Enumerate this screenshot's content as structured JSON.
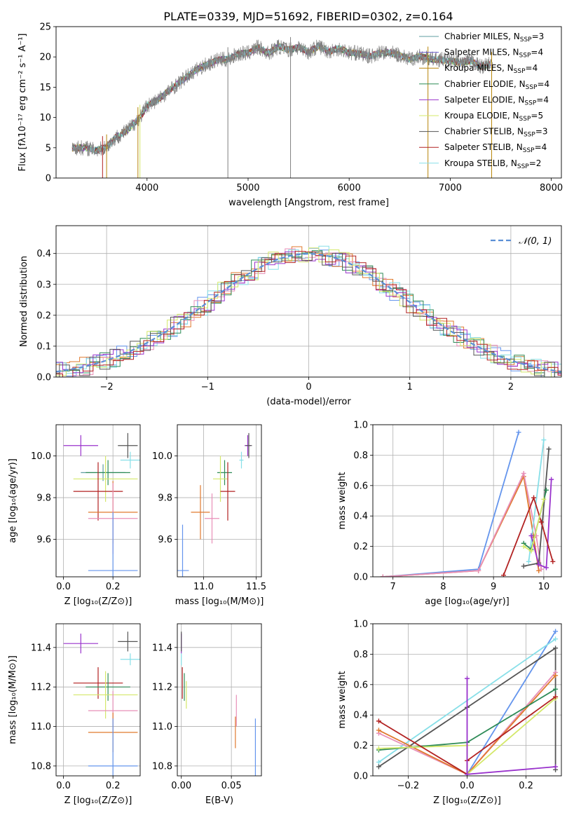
{
  "figure_title": "PLATE=0339, MJD=51692, FIBERID=0302, z=0.164",
  "colors": {
    "chabrier_miles": "#5f9ea0",
    "salpeter_miles": "#6a5acd",
    "kroupa_miles": "#b8860b",
    "chabrier_elodie": "#2e8b57",
    "salpeter_elodie": "#9932cc",
    "kroupa_elodie": "#d4e86a",
    "chabrier_stelib": "#555555",
    "salpeter_stelib": "#b22222",
    "kroupa_stelib": "#87dfe8",
    "hist_blue": "#6495ed",
    "hist_orange": "#e07a2e",
    "hist_pink": "#e88fb8",
    "gauss": "#5b8fd6"
  },
  "chart_data": [
    {
      "id": "spectrum",
      "type": "line",
      "title": "PLATE=0339, MJD=51692, FIBERID=0302, z=0.164",
      "xlabel": "wavelength [Angstrom, rest frame]",
      "ylabel": "Flux [fλ10⁻¹⁷ erg cm⁻² s⁻¹ A⁻¹]",
      "xlim": [
        3100,
        8100
      ],
      "ylim": [
        0,
        25
      ],
      "xticks": [
        "4000",
        "5000",
        "6000",
        "7000",
        "8000"
      ],
      "yticks": [
        "0",
        "5",
        "10",
        "15",
        "20",
        "25"
      ],
      "legend_position": "right",
      "legend": [
        "Chabrier MILES, N_SSP=3",
        "Salpeter MILES, N_SSP=4",
        "Kroupa MILES, N_SSP=4",
        "Chabrier ELODIE, N_SSP=4",
        "Salpeter ELODIE, N_SSP=4",
        "Kroupa ELODIE, N_SSP=5",
        "Chabrier STELIB, N_SSP=3",
        "Salpeter STELIB, N_SSP=4",
        "Kroupa STELIB, N_SSP=2"
      ],
      "x": [
        3260,
        3400,
        3500,
        3600,
        3700,
        3800,
        3900,
        3950,
        4000,
        4100,
        4200,
        4300,
        4400,
        4500,
        4600,
        4700,
        4800,
        4900,
        5000,
        5100,
        5200,
        5300,
        5400,
        5500,
        5600,
        5700,
        5800,
        5900,
        6000,
        6100,
        6200,
        6300,
        6400,
        6500,
        6600,
        6700,
        6800,
        6900,
        7000,
        7100,
        7200,
        7300,
        7400
      ],
      "y": [
        5.0,
        5.0,
        4.5,
        5.2,
        6.8,
        7.8,
        9.5,
        10.5,
        12.0,
        12.8,
        14.2,
        15.5,
        16.8,
        18.0,
        18.8,
        19.5,
        19.6,
        20.5,
        20.6,
        21.6,
        20.6,
        21.7,
        21.2,
        21.6,
        20.8,
        21.8,
        20.9,
        21.4,
        20.7,
        20.6,
        20.1,
        20.6,
        20.7,
        20.3,
        19.6,
        20.1,
        19.6,
        19.6,
        19.3,
        19.0,
        19.4,
        18.4,
        18.8
      ]
    },
    {
      "id": "residual_histogram",
      "type": "line",
      "xlabel": "(data-model)/error",
      "ylabel": "Normed distribution",
      "xlim": [
        -2.5,
        2.5
      ],
      "ylim": [
        0,
        0.49
      ],
      "xticks": [
        "−2",
        "−1",
        "0",
        "1",
        "2"
      ],
      "yticks": [
        "0.0",
        "0.1",
        "0.2",
        "0.3",
        "0.4"
      ],
      "legend": [
        "𝒩(0, 1)"
      ],
      "legend_position": "top-right",
      "gaussian": {
        "mean": 0,
        "sigma": 1
      }
    },
    {
      "id": "age_vs_Z",
      "type": "scatter",
      "xlabel": "Z [log₁₀(Z/Z⊙)]",
      "ylabel": "age  [log₁₀(age/yr)]",
      "xlim": [
        -0.03,
        0.31
      ],
      "ylim": [
        9.42,
        10.15
      ],
      "xticks": [
        "0.0",
        "0.2"
      ],
      "yticks": [
        "9.6",
        "9.8",
        "10.0"
      ],
      "points": [
        {
          "series": "Salpeter ELODIE",
          "color": "salpeter_elodie",
          "x": 0.07,
          "y": 10.05,
          "xerr": 0.07,
          "yerr": 0.05
        },
        {
          "series": "Chabrier STELIB",
          "color": "chabrier_stelib",
          "x": 0.26,
          "y": 10.05,
          "xerr": 0.04,
          "yerr": 0.06
        },
        {
          "series": "Kroupa STELIB",
          "color": "kroupa_stelib",
          "x": 0.27,
          "y": 9.98,
          "xerr": 0.04,
          "yerr": 0.04
        },
        {
          "series": "Chabrier MILES",
          "color": "chabrier_miles",
          "x": 0.16,
          "y": 9.92,
          "xerr": 0.09,
          "yerr": 0.04
        },
        {
          "series": "Chabrier ELODIE",
          "color": "chabrier_elodie",
          "x": 0.18,
          "y": 9.92,
          "xerr": 0.09,
          "yerr": 0.06
        },
        {
          "series": "Kroupa ELODIE",
          "color": "kroupa_elodie",
          "x": 0.17,
          "y": 9.89,
          "xerr": 0.13,
          "yerr": 0.11
        },
        {
          "series": "Salpeter STELIB",
          "color": "salpeter_stelib",
          "x": 0.14,
          "y": 9.83,
          "xerr": 0.1,
          "yerr": 0.14
        },
        {
          "series": "Kroupa MILES",
          "color": "hist_orange",
          "x": 0.2,
          "y": 9.73,
          "xerr": 0.1,
          "yerr": 0.15
        },
        {
          "series": "Salpeter MILES",
          "color": "hist_pink",
          "x": 0.2,
          "y": 9.7,
          "xerr": 0.1,
          "yerr": 0.17
        },
        {
          "series": "MILES blue",
          "color": "hist_blue",
          "x": 0.2,
          "y": 9.45,
          "xerr": 0.1,
          "yerr": 0.28
        }
      ]
    },
    {
      "id": "age_vs_mass",
      "type": "scatter",
      "xlabel": "mass [log₁₀(M/M⊙)]",
      "xlim": [
        10.75,
        11.55
      ],
      "ylim": [
        9.42,
        10.15
      ],
      "xticks": [
        "11.0",
        "11.5"
      ],
      "yticks": [
        "9.6",
        "9.8",
        "10.0"
      ],
      "points": [
        {
          "color": "salpeter_elodie",
          "x": 11.42,
          "y": 10.05,
          "xerr": 0.03,
          "yerr": 0.05
        },
        {
          "color": "chabrier_stelib",
          "x": 11.43,
          "y": 10.05,
          "xerr": 0.03,
          "yerr": 0.06
        },
        {
          "color": "kroupa_stelib",
          "x": 11.36,
          "y": 9.98,
          "xerr": 0.02,
          "yerr": 0.04
        },
        {
          "color": "chabrier_elodie",
          "x": 11.2,
          "y": 9.92,
          "xerr": 0.07,
          "yerr": 0.06
        },
        {
          "color": "kroupa_elodie",
          "x": 11.16,
          "y": 9.89,
          "xerr": 0.07,
          "yerr": 0.11
        },
        {
          "color": "salpeter_stelib",
          "x": 11.23,
          "y": 9.83,
          "xerr": 0.07,
          "yerr": 0.14
        },
        {
          "color": "hist_orange",
          "x": 10.97,
          "y": 9.73,
          "xerr": 0.09,
          "yerr": 0.13
        },
        {
          "color": "hist_pink",
          "x": 11.08,
          "y": 9.7,
          "xerr": 0.07,
          "yerr": 0.12
        },
        {
          "color": "hist_blue",
          "x": 10.8,
          "y": 9.45,
          "xerr": 0.06,
          "yerr": 0.22
        }
      ]
    },
    {
      "id": "weight_vs_age",
      "type": "line",
      "xlabel": "age  [log₁₀(age/yr)]",
      "ylabel": "mass weight",
      "xlim": [
        6.6,
        10.35
      ],
      "ylim": [
        0,
        1
      ],
      "xticks": [
        "7",
        "8",
        "9",
        "10"
      ],
      "yticks": [
        "0.0",
        "0.2",
        "0.4",
        "0.6",
        "0.8",
        "1.0"
      ],
      "series": [
        {
          "color": "hist_blue",
          "x": [
            6.8,
            8.7,
            9.5
          ],
          "y": [
            0.0,
            0.05,
            0.95
          ]
        },
        {
          "color": "hist_orange",
          "x": [
            6.8,
            8.7,
            9.6,
            9.8,
            9.9
          ],
          "y": [
            0.0,
            0.04,
            0.66,
            0.26,
            0.04
          ]
        },
        {
          "color": "hist_pink",
          "x": [
            6.8,
            8.7,
            9.6,
            9.85,
            9.95
          ],
          "y": [
            0.0,
            0.04,
            0.68,
            0.27,
            0.05
          ]
        },
        {
          "color": "kroupa_stelib",
          "x": [
            9.7,
            10.0
          ],
          "y": [
            0.1,
            0.9
          ]
        },
        {
          "color": "chabrier_stelib",
          "x": [
            9.6,
            9.9,
            10.1
          ],
          "y": [
            0.07,
            0.09,
            0.84
          ]
        },
        {
          "color": "salpeter_elodie",
          "x": [
            9.75,
            9.9,
            10.05,
            10.15
          ],
          "y": [
            0.27,
            0.08,
            0.06,
            0.64
          ]
        },
        {
          "color": "salpeter_stelib",
          "x": [
            9.2,
            9.8,
            9.95,
            10.18
          ],
          "y": [
            0.01,
            0.52,
            0.36,
            0.1
          ]
        },
        {
          "color": "chabrier_elodie",
          "x": [
            9.6,
            9.75,
            10.05
          ],
          "y": [
            0.22,
            0.18,
            0.57
          ]
        },
        {
          "color": "kroupa_elodie",
          "x": [
            9.6,
            9.75,
            10.0
          ],
          "y": [
            0.2,
            0.17,
            0.51
          ]
        }
      ]
    },
    {
      "id": "mass_vs_Z",
      "type": "scatter",
      "xlabel": "Z [log₁₀(Z/Z⊙)]",
      "ylabel": "mass [log₁₀(M/M⊙)]",
      "xlim": [
        -0.03,
        0.31
      ],
      "ylim": [
        10.75,
        11.52
      ],
      "xticks": [
        "0.0",
        "0.2"
      ],
      "yticks": [
        "10.8",
        "11.0",
        "11.2",
        "11.4"
      ],
      "points": [
        {
          "color": "salpeter_elodie",
          "x": 0.07,
          "y": 11.42,
          "xerr": 0.07,
          "yerr": 0.05
        },
        {
          "color": "chabrier_stelib",
          "x": 0.26,
          "y": 11.43,
          "xerr": 0.04,
          "yerr": 0.05
        },
        {
          "color": "kroupa_stelib",
          "x": 0.27,
          "y": 11.34,
          "xerr": 0.04,
          "yerr": 0.03
        },
        {
          "color": "salpeter_stelib",
          "x": 0.14,
          "y": 11.22,
          "xerr": 0.1,
          "yerr": 0.08
        },
        {
          "color": "chabrier_elodie",
          "x": 0.18,
          "y": 11.2,
          "xerr": 0.09,
          "yerr": 0.07
        },
        {
          "color": "kroupa_elodie",
          "x": 0.17,
          "y": 11.16,
          "xerr": 0.13,
          "yerr": 0.12
        },
        {
          "color": "hist_pink",
          "x": 0.2,
          "y": 11.08,
          "xerr": 0.1,
          "yerr": 0.1
        },
        {
          "color": "hist_orange",
          "x": 0.2,
          "y": 10.97,
          "xerr": 0.1,
          "yerr": 0.1
        },
        {
          "color": "hist_blue",
          "x": 0.2,
          "y": 10.8,
          "xerr": 0.1,
          "yerr": 0.24
        }
      ]
    },
    {
      "id": "mass_vs_ebv",
      "type": "scatter",
      "xlabel": "E(B-V)",
      "xlim": [
        -0.004,
        0.08
      ],
      "ylim": [
        10.75,
        11.52
      ],
      "xticks": [
        "0.00",
        "0.05"
      ],
      "yticks": [
        "10.8",
        "11.0",
        "11.2",
        "11.4"
      ],
      "points": [
        {
          "color": "salpeter_elodie",
          "x": 0.0,
          "y": 11.42,
          "yerr": 0.05
        },
        {
          "color": "chabrier_stelib",
          "x": 0.0,
          "y": 11.43,
          "yerr": 0.05
        },
        {
          "color": "kroupa_stelib",
          "x": 0.0,
          "y": 11.34,
          "yerr": 0.03
        },
        {
          "color": "salpeter_stelib",
          "x": 0.001,
          "y": 11.22,
          "yerr": 0.08
        },
        {
          "color": "chabrier_elodie",
          "x": 0.003,
          "y": 11.2,
          "yerr": 0.07
        },
        {
          "color": "kroupa_elodie",
          "x": 0.005,
          "y": 11.16,
          "yerr": 0.07
        },
        {
          "color": "hist_pink",
          "x": 0.055,
          "y": 11.08,
          "yerr": 0.08
        },
        {
          "color": "hist_orange",
          "x": 0.054,
          "y": 10.97,
          "yerr": 0.08
        },
        {
          "color": "hist_blue",
          "x": 0.074,
          "y": 10.8,
          "yerr": 0.24
        }
      ]
    },
    {
      "id": "weight_vs_Z",
      "type": "line",
      "xlabel": "Z [log₁₀(Z/Z⊙)]",
      "ylabel": "mass weight",
      "xlim": [
        -0.32,
        0.32
      ],
      "ylim": [
        0,
        1
      ],
      "xticks": [
        "−0.2",
        "0.0",
        "0.2"
      ],
      "yticks": [
        "0.0",
        "0.2",
        "0.4",
        "0.6",
        "0.8",
        "1.0"
      ],
      "series": [
        {
          "color": "hist_blue",
          "x": [
            0.0,
            0.3
          ],
          "y": [
            0.01,
            0.95
          ]
        },
        {
          "color": "kroupa_stelib",
          "x": [
            -0.3,
            0.3
          ],
          "y": [
            0.09,
            0.9
          ]
        },
        {
          "color": "chabrier_stelib",
          "x": [
            -0.3,
            0.0,
            0.3,
            0.3
          ],
          "y": [
            0.06,
            0.45,
            0.84,
            0.04
          ]
        },
        {
          "color": "hist_pink",
          "x": [
            -0.3,
            0.0,
            0.3
          ],
          "y": [
            0.28,
            0.01,
            0.68
          ]
        },
        {
          "color": "hist_orange",
          "x": [
            -0.3,
            0.0,
            0.3
          ],
          "y": [
            0.3,
            0.01,
            0.66
          ]
        },
        {
          "color": "chabrier_elodie",
          "x": [
            -0.3,
            0.0,
            0.3
          ],
          "y": [
            0.17,
            0.22,
            0.57
          ]
        },
        {
          "color": "kroupa_elodie",
          "x": [
            -0.3,
            0.0,
            0.0,
            0.3
          ],
          "y": [
            0.18,
            0.2,
            0.01,
            0.51
          ]
        },
        {
          "color": "salpeter_stelib",
          "x": [
            -0.3,
            0.0,
            0.0,
            0.3
          ],
          "y": [
            0.36,
            0.01,
            0.1,
            0.52
          ]
        },
        {
          "color": "salpeter_elodie",
          "x": [
            0.0,
            0.0,
            0.3
          ],
          "y": [
            0.64,
            0.01,
            0.06
          ]
        }
      ]
    }
  ]
}
